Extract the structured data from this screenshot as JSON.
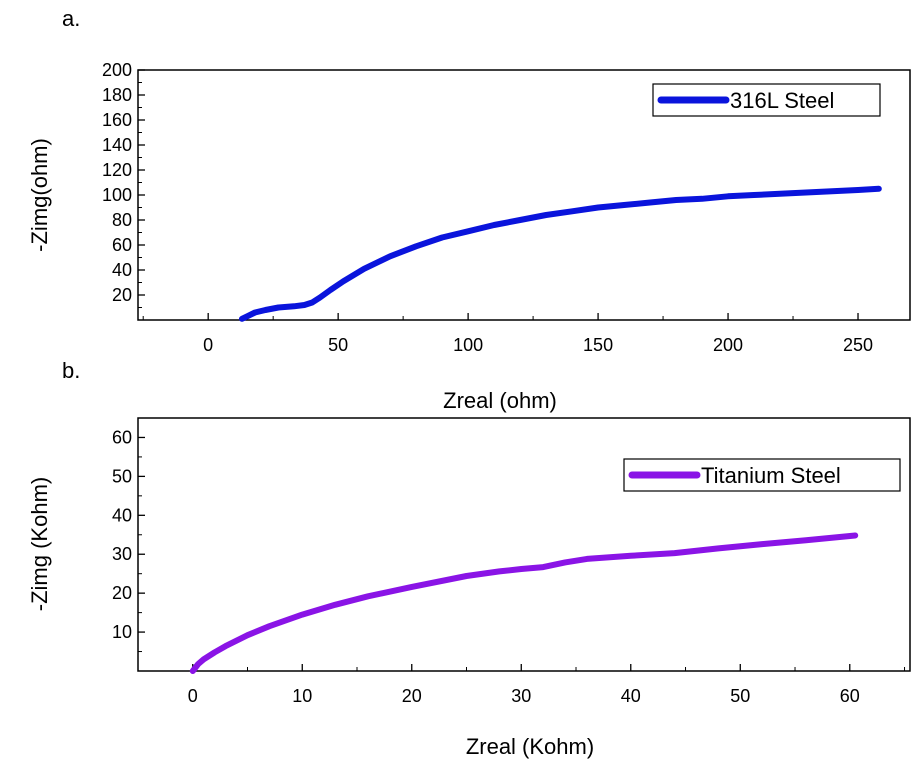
{
  "chart_data": [
    {
      "type": "line",
      "panel_label": "a.",
      "title": "",
      "xlabel": "Zreal (ohm)",
      "ylabel": "-Zimg(ohm)",
      "xlim": [
        -27,
        270
      ],
      "ylim": [
        0,
        200
      ],
      "xticks": [
        0,
        50,
        100,
        150,
        200,
        250
      ],
      "yticks": [
        20,
        40,
        60,
        80,
        100,
        120,
        140,
        160,
        180,
        200
      ],
      "grid": false,
      "legend_position": "top-right",
      "series": [
        {
          "name": "316L Steel",
          "color": "#0a14dc",
          "x": [
            13,
            15,
            18,
            22,
            27,
            33,
            37,
            40,
            43,
            47,
            52,
            60,
            70,
            80,
            90,
            100,
            110,
            120,
            130,
            140,
            150,
            160,
            170,
            180,
            190,
            200,
            210,
            220,
            230,
            240,
            250,
            258
          ],
          "y": [
            1,
            3,
            6,
            8,
            10,
            11,
            12,
            14,
            18,
            24,
            31,
            41,
            51,
            59,
            66,
            71,
            76,
            80,
            84,
            87,
            90,
            92,
            94,
            96,
            97,
            99,
            100,
            101,
            102,
            103,
            104,
            105
          ]
        }
      ]
    },
    {
      "type": "line",
      "panel_label": "b.",
      "title": "",
      "xlabel": "Zreal (Kohm)",
      "ylabel": "-Zimg (Kohm)",
      "xlim": [
        -5,
        65.5
      ],
      "ylim": [
        0,
        65
      ],
      "xticks": [
        0,
        10,
        20,
        30,
        40,
        50,
        60
      ],
      "yticks": [
        10,
        20,
        30,
        40,
        50,
        60
      ],
      "grid": false,
      "legend_position": "top-right",
      "series": [
        {
          "name": "Titanium Steel",
          "color": "#8a14e6",
          "x": [
            0,
            0.5,
            1,
            2,
            3,
            5,
            7,
            10,
            13,
            16,
            20,
            25,
            28,
            30,
            32,
            34,
            36,
            40,
            44,
            48,
            52,
            56,
            60.5
          ],
          "y": [
            0,
            1.8,
            3,
            4.8,
            6.4,
            9.2,
            11.5,
            14.5,
            17,
            19.2,
            21.6,
            24.4,
            25.6,
            26.2,
            26.7,
            27.9,
            28.8,
            29.6,
            30.3,
            31.5,
            32.6,
            33.6,
            34.8
          ]
        }
      ]
    }
  ]
}
